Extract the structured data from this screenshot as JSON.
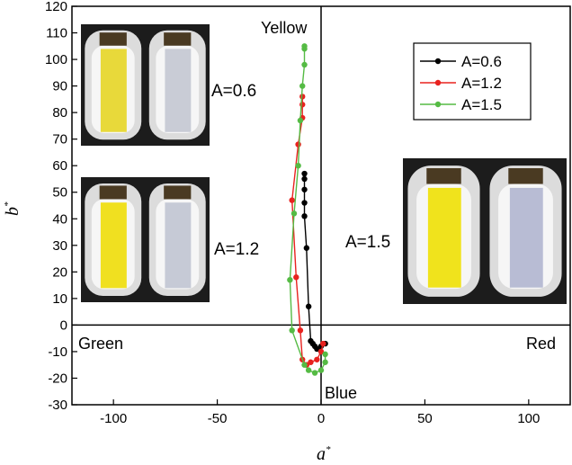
{
  "chart_data": {
    "type": "line",
    "xlabel": "a",
    "ylabel": "b",
    "axis_superscript": "*",
    "xlim": [
      -120,
      120
    ],
    "ylim": [
      -30,
      120
    ],
    "xticks": [
      -100,
      -50,
      0,
      50,
      100
    ],
    "yticks": [
      -30,
      -20,
      -10,
      0,
      10,
      20,
      30,
      40,
      50,
      60,
      70,
      80,
      90,
      100,
      110,
      120
    ],
    "grid": false,
    "legend_position": "top-right",
    "region_labels": {
      "top": "Yellow",
      "bottom": "Blue",
      "left": "Green",
      "right": "Red"
    },
    "series": [
      {
        "name": "A=0.6",
        "color": "#000000",
        "points": [
          [
            2,
            -7
          ],
          [
            0,
            -8
          ],
          [
            -2,
            -9
          ],
          [
            -3,
            -8
          ],
          [
            -4,
            -7
          ],
          [
            -5,
            -6
          ],
          [
            -6,
            7
          ],
          [
            -7,
            29
          ],
          [
            -8,
            41
          ],
          [
            -8,
            46
          ],
          [
            -8,
            51
          ],
          [
            -8,
            55
          ],
          [
            -8,
            57
          ]
        ]
      },
      {
        "name": "A=1.2",
        "color": "#e8221f",
        "points": [
          [
            1,
            -7
          ],
          [
            0,
            -10
          ],
          [
            -2,
            -13
          ],
          [
            -5,
            -14
          ],
          [
            -7,
            -15
          ],
          [
            -9,
            -13
          ],
          [
            -10,
            -2
          ],
          [
            -12,
            18
          ],
          [
            -14,
            47
          ],
          [
            -11,
            68
          ],
          [
            -9,
            78
          ],
          [
            -9,
            83
          ],
          [
            -9,
            86
          ]
        ]
      },
      {
        "name": "A=1.5",
        "color": "#55bb44",
        "points": [
          [
            2,
            -11
          ],
          [
            2,
            -14
          ],
          [
            0,
            -17
          ],
          [
            -3,
            -18
          ],
          [
            -6,
            -17
          ],
          [
            -8,
            -15
          ],
          [
            -14,
            -2
          ],
          [
            -15,
            17
          ],
          [
            -13,
            42
          ],
          [
            -11,
            60
          ],
          [
            -10,
            77
          ],
          [
            -9,
            90
          ],
          [
            -8,
            98
          ],
          [
            -8,
            104
          ],
          [
            -8,
            105
          ]
        ]
      }
    ],
    "insets": [
      {
        "label": "A=0.6",
        "fill_color": "#e8d93a",
        "blank_color": "#c9ccd6"
      },
      {
        "label": "A=1.2",
        "fill_color": "#f0e020",
        "blank_color": "#c6cad6"
      },
      {
        "label": "A=1.5",
        "fill_color": "#f0e31c",
        "blank_color": "#b8bcd4"
      }
    ]
  }
}
